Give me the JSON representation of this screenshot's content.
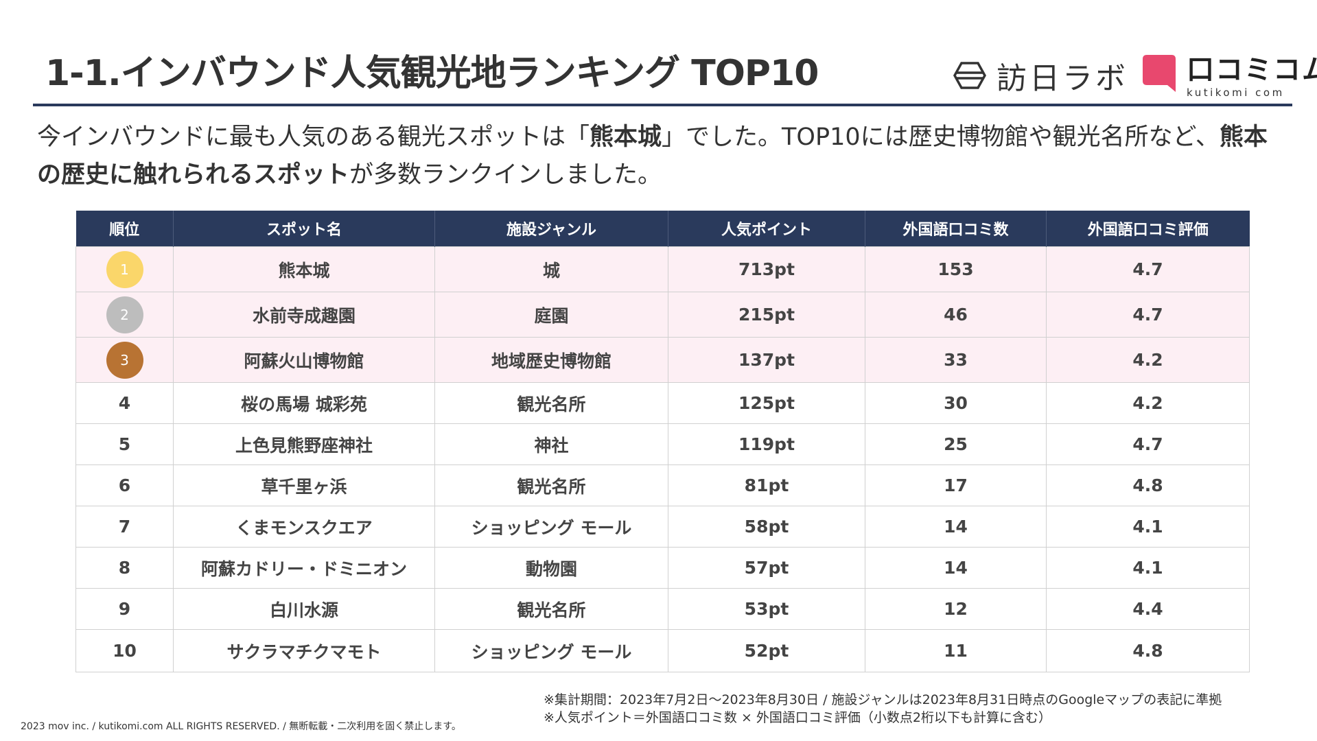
{
  "title": "1-1.インバウンド人気観光地ランキング TOP10",
  "logos": {
    "lab_text": "訪日ラボ",
    "kutikomi_text": "口コミコム",
    "kutikomi_sub": "kutikomi com",
    "kutikomi_color": "#e8486e"
  },
  "lead": {
    "part1": "今インバウンドに最も人気のある観光スポットは「",
    "bold1": "熊本城",
    "part2": "」でした。TOP10には歴史博物館や観光名所など、",
    "bold2": "熊本の歴史に触れられるスポット",
    "part3": "が多数ランクインしました。"
  },
  "table": {
    "headers": [
      "順位",
      "スポット名",
      "施設ジャンル",
      "人気ポイント",
      "外国語口コミ数",
      "外国語口コミ評価"
    ],
    "rows": [
      {
        "rank": "1",
        "spot": "熊本城",
        "genre": "城",
        "points": "713pt",
        "reviews": "153",
        "rating": "4.7"
      },
      {
        "rank": "2",
        "spot": "水前寺成趣園",
        "genre": "庭園",
        "points": "215pt",
        "reviews": "46",
        "rating": "4.7"
      },
      {
        "rank": "3",
        "spot": "阿蘇火山博物館",
        "genre": "地域歴史博物館",
        "points": "137pt",
        "reviews": "33",
        "rating": "4.2"
      },
      {
        "rank": "4",
        "spot": "桜の馬場 城彩苑",
        "genre": "観光名所",
        "points": "125pt",
        "reviews": "30",
        "rating": "4.2"
      },
      {
        "rank": "5",
        "spot": "上色見熊野座神社",
        "genre": "神社",
        "points": "119pt",
        "reviews": "25",
        "rating": "4.7"
      },
      {
        "rank": "6",
        "spot": "草千里ヶ浜",
        "genre": "観光名所",
        "points": "81pt",
        "reviews": "17",
        "rating": "4.8"
      },
      {
        "rank": "7",
        "spot": "くまモンスクエア",
        "genre": "ショッピング モール",
        "points": "58pt",
        "reviews": "14",
        "rating": "4.1"
      },
      {
        "rank": "8",
        "spot": "阿蘇カドリー・ドミニオン",
        "genre": "動物園",
        "points": "57pt",
        "reviews": "14",
        "rating": "4.1"
      },
      {
        "rank": "9",
        "spot": "白川水源",
        "genre": "観光名所",
        "points": "53pt",
        "reviews": "12",
        "rating": "4.4"
      },
      {
        "rank": "10",
        "spot": "サクラマチクマモト",
        "genre": "ショッピング モール",
        "points": "52pt",
        "reviews": "11",
        "rating": "4.8"
      }
    ],
    "header_color": "#2a3a5c",
    "highlight_row_color": "#fdeff4",
    "medal_colors": [
      "#fad66a",
      "#bdbdbd",
      "#b87333"
    ]
  },
  "notes": [
    "※集計期間：2023年7月2日～2023年8月30日 / 施設ジャンルは2023年8月31日時点のGoogleマップの表記に準拠",
    "※人気ポイント＝外国語口コミ数 × 外国語口コミ評価（小数点2桁以下も計算に含む）"
  ],
  "copyright": "2023 mov inc. / kutikomi.com ALL RIGHTS RESERVED. / 無断転載・二次利用を固く禁止します。"
}
